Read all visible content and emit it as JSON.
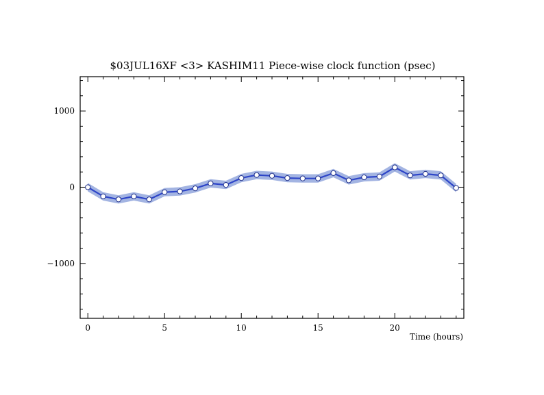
{
  "chart_data": {
    "type": "line",
    "title": "$03JUL16XF <3>  KASHIM11  Piece-wise clock function (psec)",
    "xlabel": "Time (hours)",
    "ylabel": "",
    "xlim": [
      -0.5,
      24.5
    ],
    "ylim": [
      -1720,
      1450
    ],
    "x_ticks": [
      0,
      5,
      10,
      15,
      20
    ],
    "y_ticks": [
      -1000,
      0,
      1000
    ],
    "x_tick_labels": [
      "0",
      "5",
      "10",
      "15",
      "20"
    ],
    "y_tick_labels": [
      "−1000",
      "0",
      "1000"
    ],
    "x_minor_step": 1,
    "y_minor_step": 200,
    "grid": false,
    "series": [
      {
        "x": [
          0,
          1,
          2,
          3,
          4,
          5,
          6,
          7,
          8,
          9,
          10,
          11,
          12,
          13,
          14,
          15,
          16,
          17,
          18,
          19,
          20,
          21,
          22,
          23,
          24
        ],
        "values": [
          0,
          -120,
          -160,
          -120,
          -160,
          -65,
          -55,
          -15,
          50,
          30,
          120,
          160,
          150,
          120,
          115,
          115,
          185,
          90,
          130,
          140,
          260,
          155,
          175,
          155,
          -10
        ],
        "band_width": 55
      }
    ],
    "colors": {
      "line": "#2d45c8",
      "band": "#a3b4e2",
      "marker_fill": "#ffffff",
      "marker_edge": "#1e2f8a",
      "axis": "#000000"
    }
  }
}
